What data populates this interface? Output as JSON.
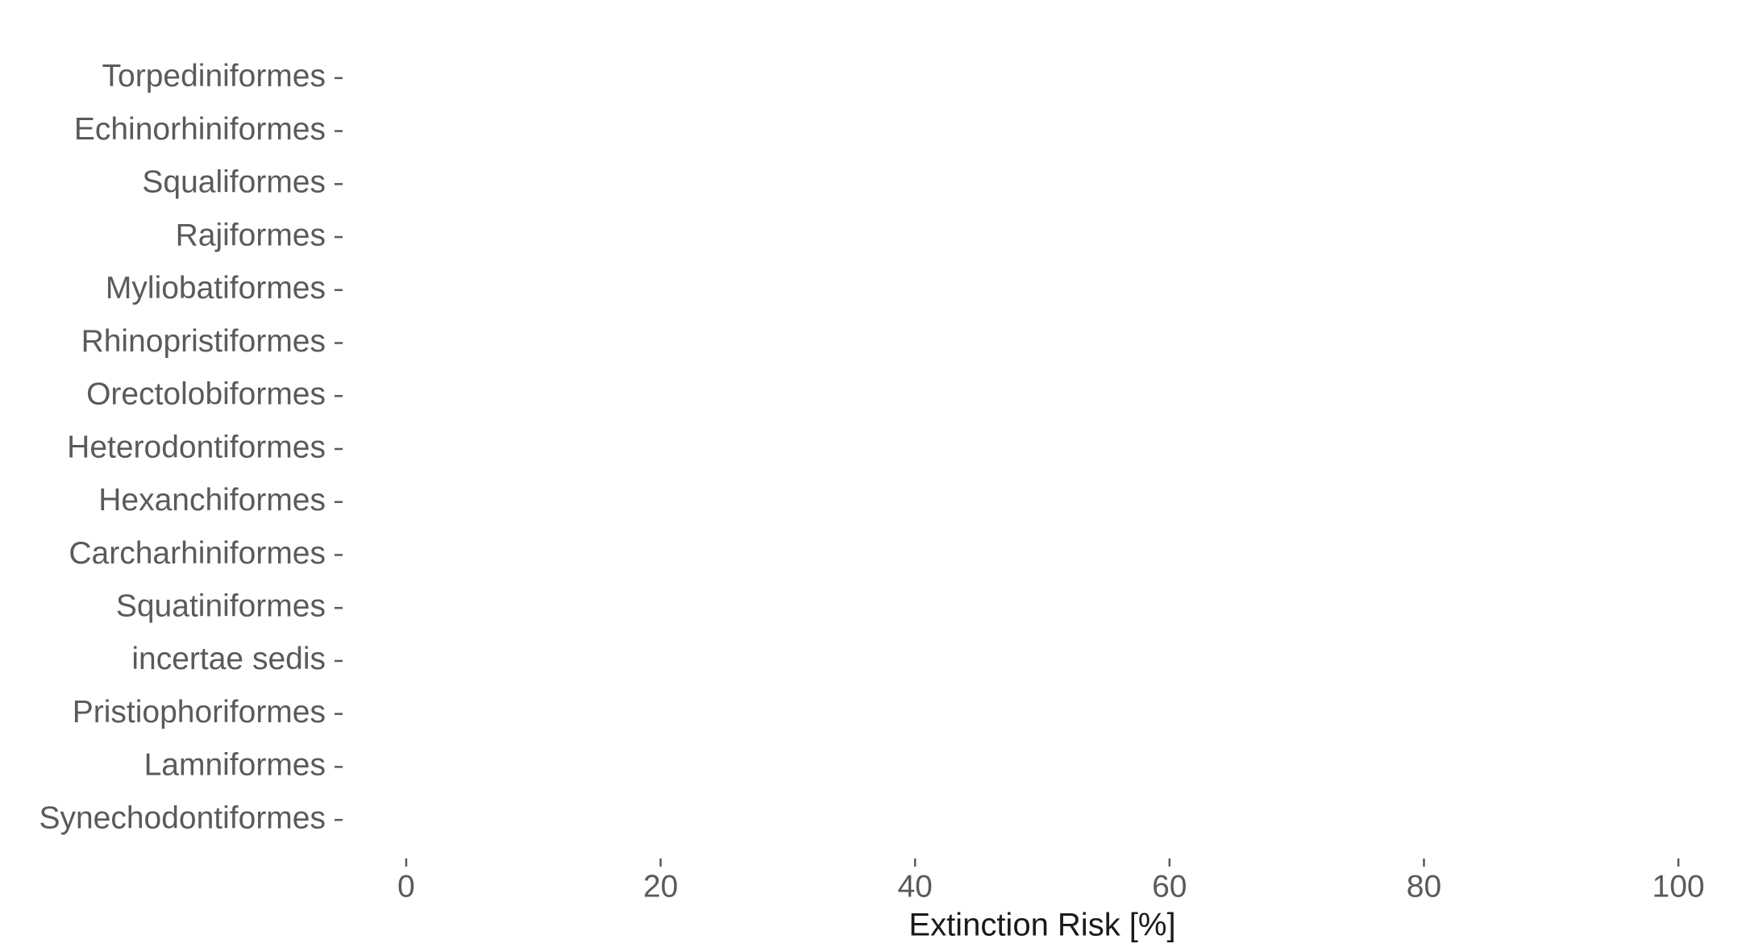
{
  "chart_data": {
    "type": "bar",
    "orientation": "horizontal",
    "xlabel": "Extinction Risk [%]",
    "categories": [
      "Torpediniformes",
      "Echinorhiniformes",
      "Squaliformes",
      "Rajiformes",
      "Myliobatiformes",
      "Rhinopristiformes",
      "Orectolobiformes",
      "Heterodontiformes",
      "Hexanchiformes",
      "Carcharhiniformes",
      "Squatiniformes",
      "incertae sedis",
      "Pristiophoriformes",
      "Lamniformes",
      "Synechodontiformes"
    ],
    "xlim": [
      -5,
      105
    ],
    "xticks": [
      0,
      20,
      40,
      60,
      80,
      100
    ],
    "grid": false
  }
}
